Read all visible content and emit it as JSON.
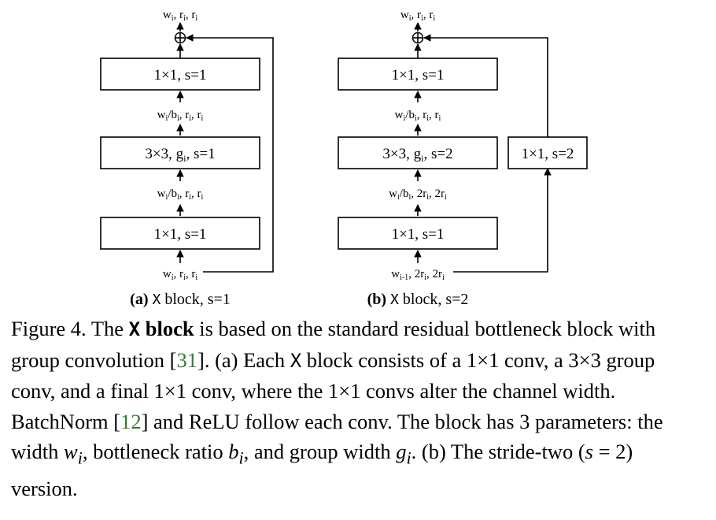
{
  "panel_a": {
    "io_top": "w",
    "io_top_rest": ", r",
    "io_top_rest2": ", r",
    "mid_label_top": "/b",
    "box_top": "1×1, s=1",
    "box_mid": "3×3, g",
    "box_mid_rest": ", s=1",
    "box_bottom": "1×1, s=1",
    "io_bottom": "w",
    "caption_tag": "(a)",
    "caption_x": "X",
    "caption_rest": "block, s=1"
  },
  "panel_b": {
    "box_top": "1×1, s=1",
    "box_mid": "3×3, g",
    "box_mid_rest": ", s=2",
    "box_bottom": "1×1, s=1",
    "box_skip": "1×1, s=2",
    "mid_label_lower": "/b",
    "mid_label_lower_rest": ", 2r",
    "io_bottom_sub": "i-1",
    "caption_tag": "(b)",
    "caption_x": "X",
    "caption_rest": "block, s=2"
  },
  "sym": {
    "w": "w",
    "r": "r",
    "b": "b",
    "i": "i",
    "comma": ", ",
    "plus": "⊕"
  },
  "caption": {
    "fig": "Figure 4. The ",
    "x": "X",
    "block": "block",
    "t1": " is based on the standard residual bottleneck block with group convolution [",
    "ref1": "31",
    "t2": "]. (a) Each ",
    "x2": "X",
    "t3": " block consists of a 1×1 conv, a 3×3 group conv, and a final 1×1 conv, where the 1×1 convs alter the channel width. BatchNorm [",
    "ref2": "12",
    "t4": "] and ReLU follow each conv. The block has 3 parameters: the width ",
    "wi": "w",
    "t5": ", bottleneck ratio ",
    "bi": "b",
    "t6": ", and group width ",
    "gi": "g",
    "t7": ". (b) The stride-two (",
    "s2": "s",
    "t8": " = 2) version."
  }
}
